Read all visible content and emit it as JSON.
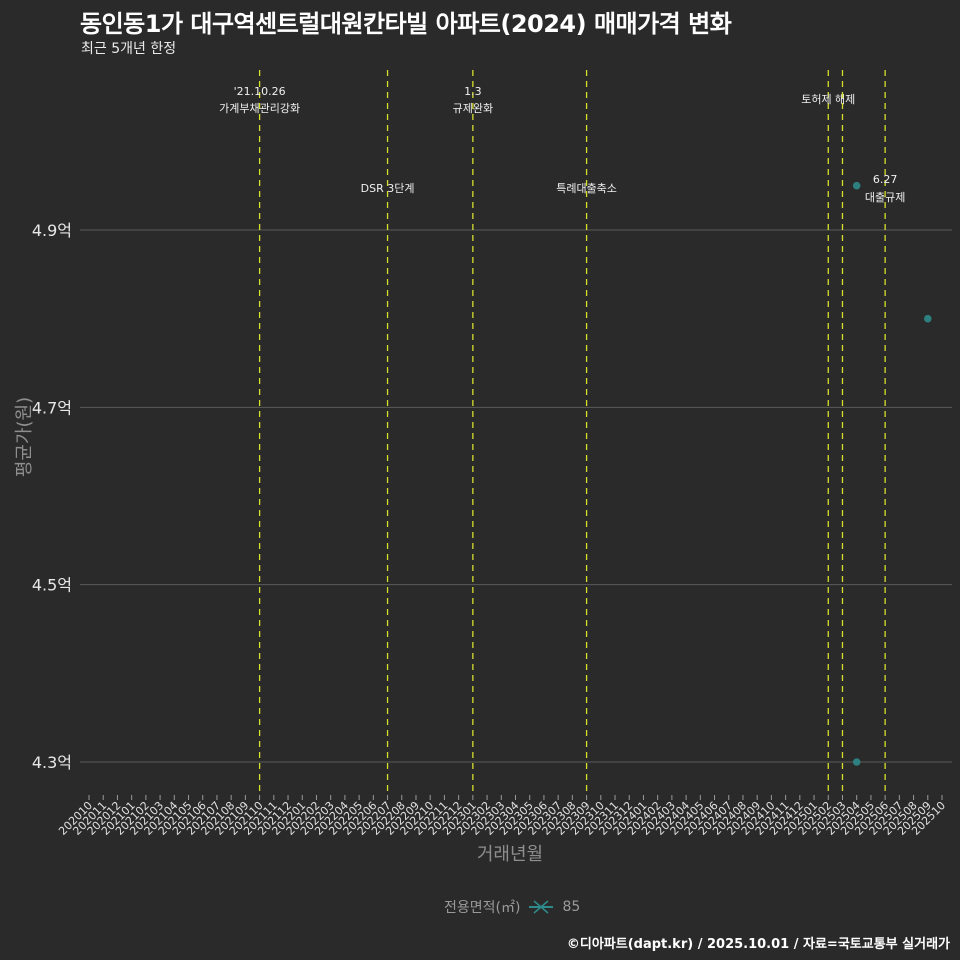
{
  "header": {
    "title": "동인동1가 대구역센트럴대원칸타빌 아파트(2024) 매매가격 변화",
    "subtitle": "최근 5개년 한정"
  },
  "axes": {
    "ylabel": "평균가(원)",
    "xlabel": "거래년월"
  },
  "legend": {
    "title": "전용면적(㎡)",
    "items": [
      {
        "label": "85",
        "color": "#2e8b8b"
      }
    ]
  },
  "footer": {
    "credit": "©디아파트(dapt.kr) / 2025.10.01 / 자료=국토교통부 실거래가"
  },
  "colors": {
    "background": "#2b2a2a",
    "grid": "#5a5a5a",
    "event_line": "#d4e02a",
    "point": "#2e7f7f"
  },
  "chart_data": {
    "type": "scatter",
    "title": "동인동1가 대구역센트럴대원칸타빌 아파트(2024) 매매가격 변화",
    "subtitle": "최근 5개년 한정",
    "xlabel": "거래년월",
    "ylabel": "평균가(원)",
    "x_ticks": [
      "202010",
      "202011",
      "202012",
      "202101",
      "202102",
      "202103",
      "202104",
      "202105",
      "202106",
      "202107",
      "202108",
      "202109",
      "202110",
      "202111",
      "202112",
      "202201",
      "202202",
      "202203",
      "202204",
      "202205",
      "202206",
      "202207",
      "202208",
      "202209",
      "202210",
      "202211",
      "202212",
      "202301",
      "202302",
      "202303",
      "202304",
      "202305",
      "202306",
      "202307",
      "202308",
      "202309",
      "202310",
      "202311",
      "202312",
      "202401",
      "202402",
      "202403",
      "202404",
      "202405",
      "202406",
      "202407",
      "202408",
      "202409",
      "202410",
      "202411",
      "202412",
      "202501",
      "202502",
      "202503",
      "202504",
      "202505",
      "202506",
      "202507",
      "202508",
      "202509",
      "202510"
    ],
    "y_ticks": [
      {
        "value": 4.3,
        "label": "4.3억"
      },
      {
        "value": 4.5,
        "label": "4.5억"
      },
      {
        "value": 4.7,
        "label": "4.7억"
      },
      {
        "value": 4.9,
        "label": "4.9억"
      }
    ],
    "ylim": [
      4.25,
      5.08
    ],
    "grid": true,
    "legend_position": "bottom",
    "series": [
      {
        "name": "85",
        "points": [
          {
            "x": "202504",
            "y": 4.95
          },
          {
            "x": "202504",
            "y": 4.3
          },
          {
            "x": "202509",
            "y": 4.8
          }
        ]
      }
    ],
    "events": [
      {
        "x": "202110",
        "label_line1": "'21.10.26",
        "label_line2": "가계부채관리강화",
        "label_row": "top"
      },
      {
        "x": "202207",
        "label_line1": "DSR 3단계",
        "label_line2": "",
        "label_row": "mid"
      },
      {
        "x": "202301",
        "label_line1": "1.3",
        "label_line2": "규제완화",
        "label_row": "top"
      },
      {
        "x": "202309",
        "label_line1": "특례대출축소",
        "label_line2": "",
        "label_row": "mid"
      },
      {
        "x": "202502",
        "label_line1": "토허제 해제",
        "label_line2": "",
        "label_row": "top"
      },
      {
        "x": "202503",
        "label_line1": "",
        "label_line2": "",
        "label_row": "none"
      },
      {
        "x": "202506",
        "label_line1": "6.27",
        "label_line2": "대출규제",
        "label_row": "mid"
      }
    ]
  }
}
